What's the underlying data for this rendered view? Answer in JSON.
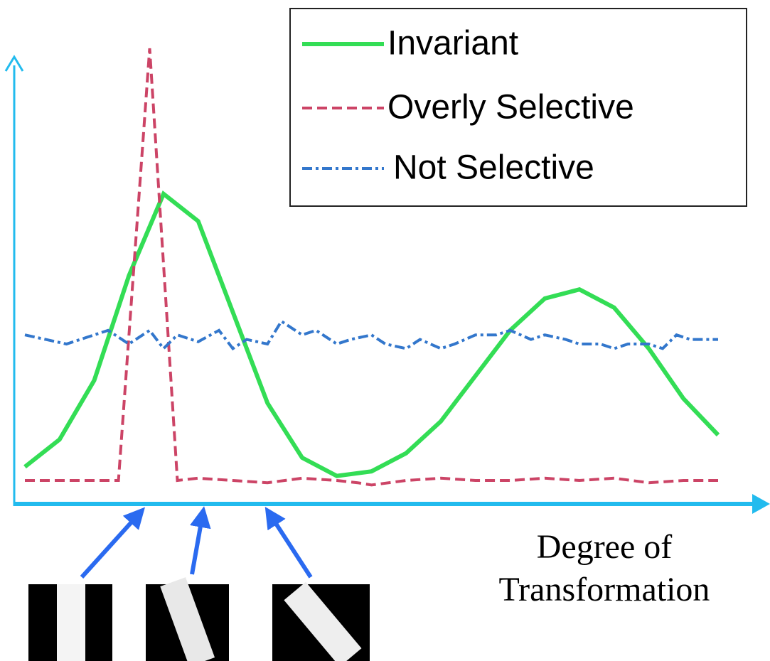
{
  "chart_data": {
    "type": "line",
    "xlabel": [
      "Degree of",
      "Transformation"
    ],
    "xlim": [
      0,
      100
    ],
    "ylim": [
      0,
      100
    ],
    "legend_position": "upper right",
    "axis_color": "#22bbee",
    "series": [
      {
        "name": "Invariant",
        "color": "#33dd55",
        "style": "solid",
        "x": [
          0,
          5,
          10,
          15,
          20,
          25,
          30,
          35,
          40,
          45,
          50,
          55,
          60,
          65,
          70,
          75,
          80,
          85,
          90,
          95,
          100
        ],
        "values": [
          8,
          14,
          27,
          50,
          68,
          62,
          42,
          22,
          10,
          6,
          7,
          11,
          18,
          28,
          38,
          45,
          47,
          43,
          34,
          23,
          15
        ]
      },
      {
        "name": "Overly Selective",
        "color": "#cc4466",
        "style": "dashed",
        "x": [
          0,
          5,
          10,
          13.5,
          18,
          22,
          25,
          30,
          35,
          40,
          45,
          48,
          50,
          55,
          60,
          65,
          70,
          75,
          80,
          85,
          90,
          95,
          100
        ],
        "values": [
          5,
          5,
          5,
          5,
          100,
          5,
          5.5,
          5,
          4.5,
          5.5,
          5,
          4.5,
          4,
          5,
          5.5,
          5,
          5,
          5.5,
          5,
          5.5,
          4.5,
          5,
          5
        ]
      },
      {
        "name": "Not Selective",
        "color": "#3377cc",
        "style": "dashdot",
        "x": [
          0,
          3,
          6,
          9,
          12,
          15,
          18,
          20,
          22,
          25,
          28,
          30,
          32,
          35,
          37,
          40,
          42,
          45,
          47,
          50,
          52,
          55,
          57,
          60,
          62,
          65,
          68,
          70,
          73,
          75,
          78,
          80,
          83,
          85,
          87,
          90,
          92,
          94,
          96,
          100
        ],
        "values": [
          37,
          36,
          35,
          36.5,
          38,
          35,
          38,
          34,
          37,
          35.5,
          38,
          34,
          36,
          35,
          40,
          37,
          38,
          35,
          36,
          37,
          35,
          34,
          36,
          34,
          35,
          37,
          37,
          38,
          36,
          37,
          36,
          35,
          35,
          34,
          35,
          35,
          34,
          37,
          36,
          36
        ]
      }
    ]
  }
}
